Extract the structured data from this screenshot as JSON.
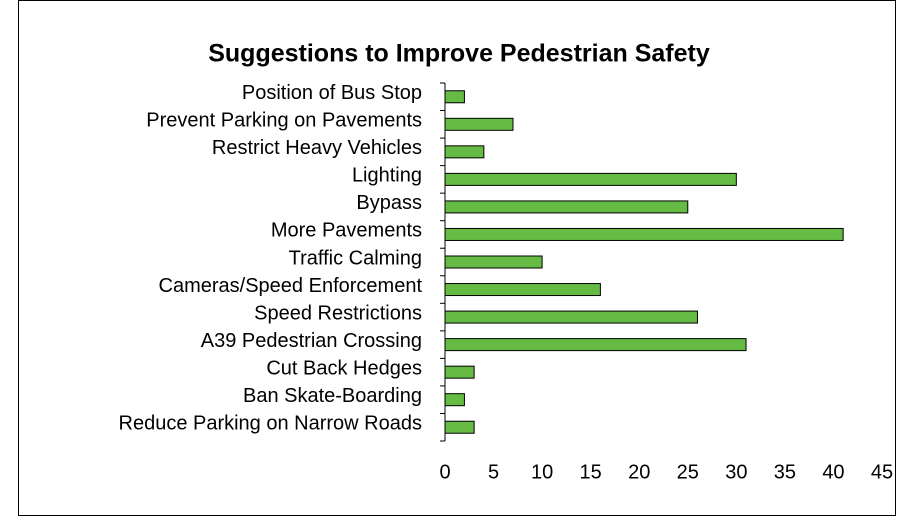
{
  "chart_data": {
    "type": "bar",
    "orientation": "horizontal",
    "title": "Suggestions to Improve Pedestrian Safety",
    "categories": [
      "Position of Bus Stop",
      "Prevent Parking on Pavements",
      "Restrict Heavy Vehicles",
      "Lighting",
      "Bypass",
      "More Pavements",
      "Traffic Calming",
      "Cameras/Speed Enforcement",
      "Speed Restrictions",
      "A39 Pedestrian Crossing",
      "Cut Back Hedges",
      "Ban Skate-Boarding",
      "Reduce Parking on Narrow Roads"
    ],
    "values": [
      2,
      7,
      4,
      30,
      25,
      41,
      10,
      16,
      26,
      31,
      3,
      2,
      3
    ],
    "color": "#66bb44",
    "xlim": [
      0,
      45
    ],
    "xticks": [
      0,
      5,
      10,
      15,
      20,
      25,
      30,
      35,
      40,
      45
    ],
    "grid": false
  }
}
